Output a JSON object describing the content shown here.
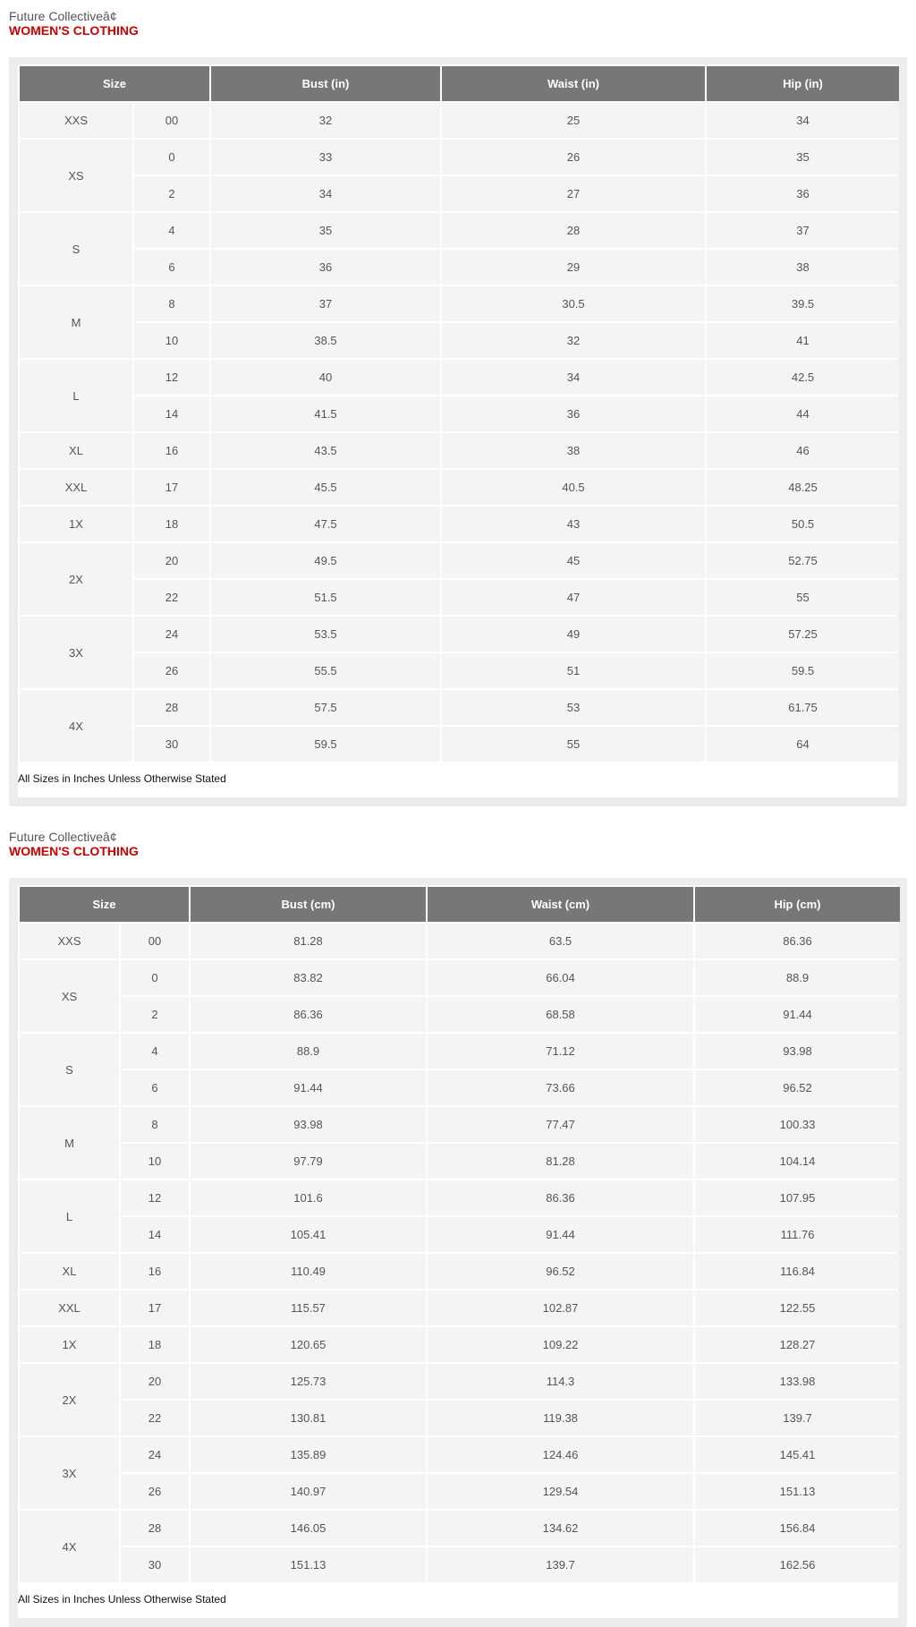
{
  "charts": [
    {
      "brand": "Future Collectiveâ¢",
      "heading": "WOMEN'S CLOTHING",
      "headers": [
        "Size",
        "Bust (in)",
        "Waist (in)",
        "Hip (in)"
      ],
      "groups": [
        {
          "size": "XXS",
          "rows": [
            [
              "00",
              "32",
              "25",
              "34"
            ]
          ]
        },
        {
          "size": "XS",
          "rows": [
            [
              "0",
              "33",
              "26",
              "35"
            ],
            [
              "2",
              "34",
              "27",
              "36"
            ]
          ]
        },
        {
          "size": "S",
          "rows": [
            [
              "4",
              "35",
              "28",
              "37"
            ],
            [
              "6",
              "36",
              "29",
              "38"
            ]
          ]
        },
        {
          "size": "M",
          "rows": [
            [
              "8",
              "37",
              "30.5",
              "39.5"
            ],
            [
              "10",
              "38.5",
              "32",
              "41"
            ]
          ]
        },
        {
          "size": "L",
          "rows": [
            [
              "12",
              "40",
              "34",
              "42.5"
            ],
            [
              "14",
              "41.5",
              "36",
              "44"
            ]
          ]
        },
        {
          "size": "XL",
          "rows": [
            [
              "16",
              "43.5",
              "38",
              "46"
            ]
          ]
        },
        {
          "size": "XXL",
          "rows": [
            [
              "17",
              "45.5",
              "40.5",
              "48.25"
            ]
          ]
        },
        {
          "size": "1X",
          "rows": [
            [
              "18",
              "47.5",
              "43",
              "50.5"
            ]
          ]
        },
        {
          "size": "2X",
          "rows": [
            [
              "20",
              "49.5",
              "45",
              "52.75"
            ],
            [
              "22",
              "51.5",
              "47",
              "55"
            ]
          ]
        },
        {
          "size": "3X",
          "rows": [
            [
              "24",
              "53.5",
              "49",
              "57.25"
            ],
            [
              "26",
              "55.5",
              "51",
              "59.5"
            ]
          ]
        },
        {
          "size": "4X",
          "rows": [
            [
              "28",
              "57.5",
              "53",
              "61.75"
            ],
            [
              "30",
              "59.5",
              "55",
              "64"
            ]
          ]
        }
      ],
      "footer": "All Sizes in Inches Unless Otherwise Stated"
    },
    {
      "brand": "Future Collectiveâ¢",
      "heading": "WOMEN'S CLOTHING",
      "headers": [
        "Size",
        "Bust (cm)",
        "Waist (cm)",
        "Hip (cm)"
      ],
      "groups": [
        {
          "size": "XXS",
          "rows": [
            [
              "00",
              "81.28",
              "63.5",
              "86.36"
            ]
          ]
        },
        {
          "size": "XS",
          "rows": [
            [
              "0",
              "83.82",
              "66.04",
              "88.9"
            ],
            [
              "2",
              "86.36",
              "68.58",
              "91.44"
            ]
          ]
        },
        {
          "size": "S",
          "rows": [
            [
              "4",
              "88.9",
              "71.12",
              "93.98"
            ],
            [
              "6",
              "91.44",
              "73.66",
              "96.52"
            ]
          ]
        },
        {
          "size": "M",
          "rows": [
            [
              "8",
              "93.98",
              "77.47",
              "100.33"
            ],
            [
              "10",
              "97.79",
              "81.28",
              "104.14"
            ]
          ]
        },
        {
          "size": "L",
          "rows": [
            [
              "12",
              "101.6",
              "86.36",
              "107.95"
            ],
            [
              "14",
              "105.41",
              "91.44",
              "111.76"
            ]
          ]
        },
        {
          "size": "XL",
          "rows": [
            [
              "16",
              "110.49",
              "96.52",
              "116.84"
            ]
          ]
        },
        {
          "size": "XXL",
          "rows": [
            [
              "17",
              "115.57",
              "102.87",
              "122.55"
            ]
          ]
        },
        {
          "size": "1X",
          "rows": [
            [
              "18",
              "120.65",
              "109.22",
              "128.27"
            ]
          ]
        },
        {
          "size": "2X",
          "rows": [
            [
              "20",
              "125.73",
              "114.3",
              "133.98"
            ],
            [
              "22",
              "130.81",
              "119.38",
              "139.7"
            ]
          ]
        },
        {
          "size": "3X",
          "rows": [
            [
              "24",
              "135.89",
              "124.46",
              "145.41"
            ],
            [
              "26",
              "140.97",
              "129.54",
              "151.13"
            ]
          ]
        },
        {
          "size": "4X",
          "rows": [
            [
              "28",
              "146.05",
              "134.62",
              "156.84"
            ],
            [
              "30",
              "151.13",
              "139.7",
              "162.56"
            ]
          ]
        }
      ],
      "footer": "All Sizes in Inches Unless Otherwise Stated"
    }
  ]
}
